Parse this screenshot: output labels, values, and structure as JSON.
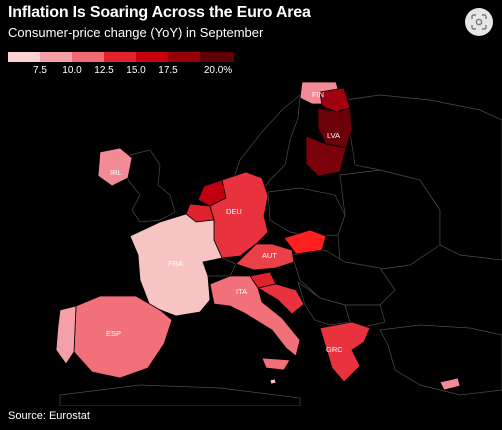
{
  "title": "Inflation Is Soaring Across the Euro Area",
  "subtitle": "Consumer-price change (YoY) in September",
  "source": "Source: Eurostat",
  "legend": {
    "ticks": [
      "7.5",
      "10.0",
      "12.5",
      "15.0",
      "17.5",
      "20.0%"
    ],
    "colors": [
      "#fbd3d3",
      "#f5a0a8",
      "#ef6a73",
      "#e0222d",
      "#c7000c",
      "#970008",
      "#5e0006"
    ]
  },
  "icons": {
    "top_right_button": "camera-scan-icon"
  },
  "countries": {
    "FIN": {
      "label": "FIN",
      "color": "#f28b96"
    },
    "LVA": {
      "label": "LVA",
      "color": "#6b0009"
    },
    "IRL": {
      "label": "IRL",
      "color": "#f28b96"
    },
    "DEU": {
      "label": "DEU",
      "color": "#e8323d"
    },
    "FRA": {
      "label": "FRA",
      "color": "#f7c4c4"
    },
    "AUT": {
      "label": "AUT",
      "color": "#ea4048"
    },
    "ITA": {
      "label": "ITA",
      "color": "#f27079"
    },
    "ESP": {
      "label": "ESP",
      "color": "#f27079"
    },
    "GRC": {
      "label": "GRC",
      "color": "#e8323d"
    },
    "NLD": {
      "label": "",
      "color": "#c00010"
    },
    "BEL": {
      "label": "",
      "color": "#e0222d"
    },
    "SVK": {
      "label": "",
      "color": "#ff1f1f"
    },
    "SVN": {
      "label": "",
      "color": "#e0222d"
    },
    "HRV": {
      "label": "",
      "color": "#e8323d"
    },
    "EST": {
      "label": "",
      "color": "#a00010"
    },
    "LTU": {
      "label": "",
      "color": "#7a0009"
    },
    "PRT": {
      "label": "",
      "color": "#f5a0a8"
    },
    "CYP": {
      "label": "",
      "color": "#f28b96"
    },
    "MLT": {
      "label": "",
      "color": "#f7c4c4"
    }
  }
}
